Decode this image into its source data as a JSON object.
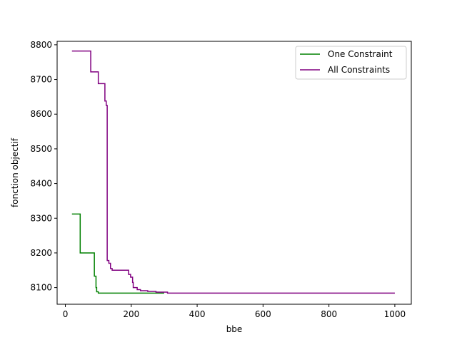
{
  "chart_data": {
    "type": "line",
    "line_style": "step",
    "title": "",
    "xlabel": "bbe",
    "ylabel": "fonction objectif",
    "xlim": [
      -25,
      1050
    ],
    "ylim": [
      8052,
      8810
    ],
    "xticks": [
      0,
      200,
      400,
      600,
      800,
      1000
    ],
    "yticks": [
      8100,
      8200,
      8300,
      8400,
      8500,
      8600,
      8700,
      8800
    ],
    "grid": false,
    "legend_position": "top-right",
    "series": [
      {
        "name": "One Constraint",
        "color": "#008000",
        "points": [
          [
            20,
            8312
          ],
          [
            45,
            8312
          ],
          [
            45,
            8200
          ],
          [
            88,
            8200
          ],
          [
            88,
            8133
          ],
          [
            93,
            8133
          ],
          [
            93,
            8100
          ],
          [
            95,
            8100
          ],
          [
            95,
            8088
          ],
          [
            100,
            8088
          ],
          [
            100,
            8084
          ],
          [
            300,
            8084
          ]
        ]
      },
      {
        "name": "All Constraints",
        "color": "#800080",
        "points": [
          [
            20,
            8782
          ],
          [
            77,
            8782
          ],
          [
            77,
            8722
          ],
          [
            100,
            8722
          ],
          [
            100,
            8688
          ],
          [
            120,
            8688
          ],
          [
            120,
            8638
          ],
          [
            124,
            8638
          ],
          [
            124,
            8625
          ],
          [
            127,
            8625
          ],
          [
            127,
            8178
          ],
          [
            132,
            8178
          ],
          [
            132,
            8170
          ],
          [
            137,
            8170
          ],
          [
            137,
            8155
          ],
          [
            142,
            8155
          ],
          [
            142,
            8150
          ],
          [
            192,
            8150
          ],
          [
            192,
            8138
          ],
          [
            198,
            8138
          ],
          [
            198,
            8130
          ],
          [
            204,
            8130
          ],
          [
            204,
            8115
          ],
          [
            206,
            8115
          ],
          [
            206,
            8100
          ],
          [
            218,
            8100
          ],
          [
            218,
            8094
          ],
          [
            228,
            8094
          ],
          [
            228,
            8091
          ],
          [
            250,
            8091
          ],
          [
            250,
            8089
          ],
          [
            275,
            8089
          ],
          [
            275,
            8087
          ],
          [
            310,
            8087
          ],
          [
            310,
            8084
          ],
          [
            1000,
            8084
          ]
        ]
      }
    ]
  }
}
